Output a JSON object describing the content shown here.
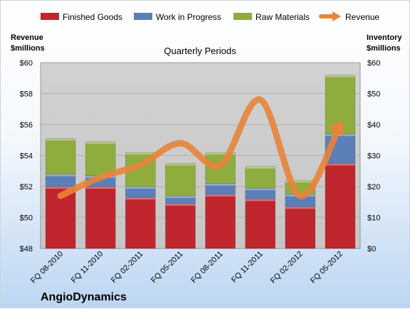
{
  "chart_data": {
    "type": "bar",
    "subtitle": "Quarterly Periods",
    "company": "AngioDynamics",
    "left_axis": {
      "label_line1": "Revenue",
      "label_line2": "$millions",
      "range": [
        48,
        60
      ],
      "ticks": [
        "$48",
        "$50",
        "$52",
        "$54",
        "$56",
        "$58",
        "$60"
      ]
    },
    "right_axis": {
      "label_line1": "Inventory",
      "label_line2": "$millions",
      "range": [
        0,
        60
      ],
      "ticks": [
        "$0",
        "$10",
        "$20",
        "$30",
        "$40",
        "$50",
        "$60"
      ]
    },
    "categories": [
      "FQ 08-2010",
      "FQ 11-2010",
      "FQ 02-2011",
      "FQ 05-2011",
      "FQ 08-2011",
      "FQ 11-2011",
      "FQ 02-2012",
      "FQ 05-2012"
    ],
    "series": [
      {
        "name": "Finished Goods",
        "type": "bar",
        "axis": "right",
        "color": "#c0262d",
        "values": [
          20,
          20,
          16.5,
          14.5,
          17.5,
          16,
          13.5,
          27.5
        ]
      },
      {
        "name": "Work in Progress",
        "type": "bar",
        "axis": "right",
        "color": "#5b7fb8",
        "values": [
          4,
          3.5,
          3.5,
          2.5,
          3.5,
          3.5,
          4,
          9.5
        ]
      },
      {
        "name": "Raw Materials",
        "type": "bar",
        "axis": "right",
        "color": "#8fac3f",
        "values": [
          11.5,
          11,
          11,
          10.5,
          10,
          7,
          4.5,
          19
        ]
      },
      {
        "name": "Revenue",
        "type": "line",
        "axis": "left",
        "color": "#e8843a",
        "values": [
          51.4,
          52.6,
          53.4,
          54.8,
          53.4,
          57.6,
          51.4,
          56.0
        ]
      }
    ],
    "grid": true,
    "legend": "top"
  }
}
